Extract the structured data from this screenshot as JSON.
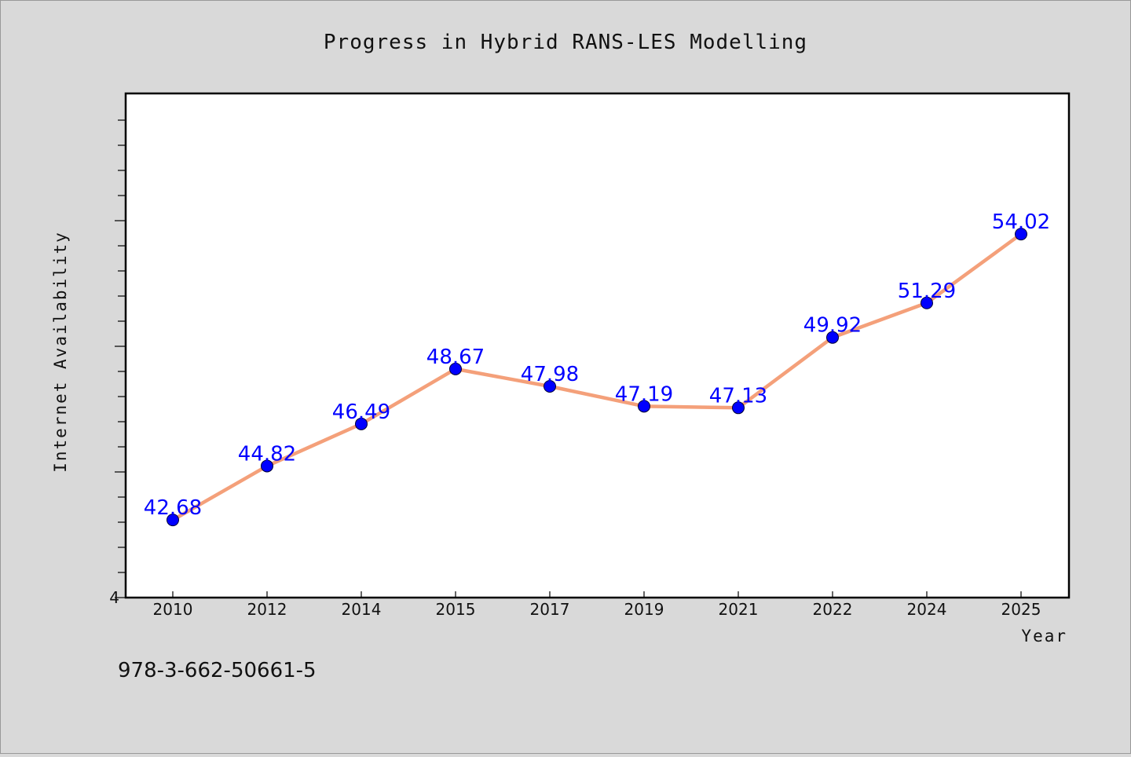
{
  "chart_data": {
    "type": "line",
    "title": "Progress in Hybrid RANS-LES Modelling",
    "xlabel": "Year",
    "ylabel": "Internet Availability",
    "categories": [
      "2010",
      "2012",
      "2014",
      "2015",
      "2017",
      "2019",
      "2021",
      "2022",
      "2024",
      "2025"
    ],
    "series": [
      {
        "values": [
          42.68,
          44.82,
          46.49,
          48.67,
          47.98,
          47.19,
          47.13,
          49.92,
          51.29,
          54.02
        ],
        "data_labels": [
          "42.68",
          "44.82",
          "46.49",
          "48.67",
          "47.98",
          "47.19",
          "47.13",
          "49.92",
          "51.29",
          "54.02"
        ]
      }
    ],
    "y_tick_label": "4",
    "ylim": [
      39.6,
      59.6
    ],
    "grid": false,
    "colors": {
      "line": "#f4a07a",
      "marker": "#0000ff",
      "data_label": "#0000ff",
      "plot_background": "#ffffff",
      "page_background": "#d9d9d9"
    }
  },
  "footnote": "978-3-662-50661-5"
}
